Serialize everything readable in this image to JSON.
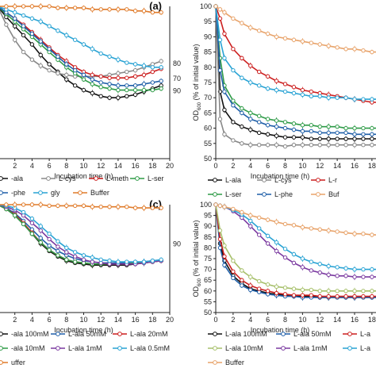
{
  "chart_data": [
    {
      "type": "line",
      "panel_label": "(a)",
      "xlabel": "Incubation time (h)",
      "ylabel": "",
      "xlim": [
        0,
        20
      ],
      "ylim": [
        50,
        100
      ],
      "xticks": [
        2,
        4,
        6,
        8,
        10,
        12,
        14,
        16,
        18,
        20
      ],
      "yticks": [],
      "x": [
        0,
        1,
        2,
        3,
        4,
        5,
        6,
        7,
        8,
        9,
        10,
        11,
        12,
        13,
        14,
        15,
        16,
        17,
        18,
        19
      ],
      "annotations": [
        "80",
        "70",
        "90"
      ],
      "series": [
        {
          "name": "L-ala",
          "color": "#111111",
          "marker": "circle",
          "values": [
            100,
            96.5,
            93.5,
            90.5,
            87.5,
            84,
            81,
            78.5,
            76,
            74,
            72.5,
            71.5,
            70.5,
            70,
            70,
            70.5,
            71,
            72,
            73,
            74
          ]
        },
        {
          "name": "L-cys",
          "color": "#888888",
          "marker": "circle",
          "values": [
            100,
            94,
            89,
            85,
            82.5,
            80.5,
            79,
            78,
            77.5,
            77,
            77,
            77,
            77,
            77.5,
            78,
            78.5,
            79,
            80,
            81,
            82
          ]
        },
        {
          "name": "L-meth",
          "color": "#cc1f1f",
          "marker": "circle",
          "values": [
            100,
            98,
            96,
            94,
            91.5,
            89,
            86.5,
            84,
            82,
            80,
            78.5,
            77.5,
            77,
            76.5,
            76.5,
            76.5,
            77,
            77.5,
            78.5,
            79.5
          ]
        },
        {
          "name": "L-ser",
          "color": "#2e9b47",
          "marker": "circle",
          "values": [
            100,
            97.5,
            95,
            92.5,
            90,
            87.5,
            85,
            82.5,
            80,
            78,
            76,
            74.5,
            73.5,
            73,
            72.5,
            72.5,
            72.5,
            72.5,
            72.5,
            73
          ]
        },
        {
          "name": "L-phe",
          "color": "#1f5fa8",
          "marker": "circle",
          "values": [
            100,
            98,
            96,
            93.5,
            91,
            88.5,
            86,
            83.5,
            81,
            79,
            77.5,
            76,
            75,
            74.5,
            74,
            74,
            74,
            74.5,
            75,
            75.5
          ]
        },
        {
          "name": "gly",
          "color": "#29a3d4",
          "marker": "circle",
          "values": [
            100,
            99,
            98,
            97,
            96,
            95,
            93.5,
            92,
            90.5,
            89,
            87.5,
            86,
            84.5,
            83.5,
            82.5,
            81.5,
            81,
            80.5,
            80,
            80
          ]
        },
        {
          "name": "Buffer",
          "color": "#e07b2a",
          "marker": "circle",
          "values": [
            100,
            100,
            100,
            100,
            100,
            100,
            100,
            99.5,
            99.5,
            99.5,
            99.5,
            99,
            99,
            99,
            99,
            99,
            98.5,
            98.5,
            98,
            98
          ]
        }
      ]
    },
    {
      "type": "line",
      "panel_label": "",
      "xlabel": "Incubation time (h)",
      "ylabel": "OD600 (% of initial value)",
      "xlim": [
        0,
        19.2
      ],
      "ylim": [
        50,
        100
      ],
      "xticks": [
        0,
        2,
        4,
        6,
        8,
        10,
        12,
        14,
        16,
        18
      ],
      "yticks": [
        50,
        55,
        60,
        65,
        70,
        75,
        80,
        85,
        90,
        95,
        100
      ],
      "x": [
        0,
        0.5,
        1,
        2,
        3,
        4,
        5,
        6,
        7,
        8,
        9,
        10,
        11,
        12,
        13,
        14,
        15,
        16,
        17,
        18,
        19
      ],
      "series": [
        {
          "name": "L-ala",
          "color": "#111111",
          "marker": "circle",
          "values": [
            100,
            72,
            66,
            62,
            60.5,
            59.5,
            58.5,
            58,
            57.5,
            57,
            57,
            57,
            56.5,
            56.5,
            56.5,
            56.5,
            56.5,
            56.5,
            56.5,
            56.5,
            56.5
          ]
        },
        {
          "name": "L-cys",
          "color": "#888888",
          "marker": "circle",
          "values": [
            100,
            63,
            58,
            56,
            55,
            54.5,
            54.5,
            54.5,
            54.5,
            54,
            54.5,
            54.5,
            54.5,
            54.5,
            54.5,
            54.5,
            54.5,
            54.5,
            54.5,
            54.5,
            54.5
          ]
        },
        {
          "name": "L-meth",
          "color": "#cc1f1f",
          "marker": "circle",
          "values": [
            100,
            96,
            91,
            86,
            83,
            80.5,
            78.5,
            77,
            75.5,
            74.5,
            73.5,
            72.5,
            72,
            71.5,
            71,
            70.5,
            70,
            69.5,
            69,
            68.5,
            68.5
          ]
        },
        {
          "name": "L-ser",
          "color": "#2e9b47",
          "marker": "circle",
          "values": [
            100,
            83,
            74,
            69,
            66.5,
            65,
            64,
            63,
            62.5,
            62,
            61.5,
            61,
            61,
            60.5,
            60.5,
            60.5,
            60,
            60,
            60,
            60,
            60
          ]
        },
        {
          "name": "L-phe",
          "color": "#1f5fa8",
          "marker": "circle",
          "values": [
            100,
            79,
            72,
            67.5,
            65,
            63,
            62,
            61,
            60.5,
            60,
            59.5,
            59,
            59,
            58.5,
            58.5,
            58.5,
            58.5,
            58,
            58,
            58,
            58
          ]
        },
        {
          "name": "gly",
          "color": "#29a3d4",
          "marker": "circle",
          "values": [
            100,
            89,
            83,
            79,
            76.5,
            75,
            74,
            73,
            72.5,
            72,
            71.5,
            71,
            70.5,
            70.5,
            70,
            70,
            70,
            69.5,
            69.5,
            69.5,
            69.5
          ]
        },
        {
          "name": "Buffer",
          "color": "#e8a36a",
          "marker": "circle",
          "values": [
            100,
            99,
            98,
            96,
            94.5,
            93,
            92,
            91,
            90,
            89.5,
            89,
            88.5,
            88,
            87.5,
            87,
            86.5,
            86,
            86,
            85.5,
            85,
            85
          ]
        }
      ]
    },
    {
      "type": "line",
      "panel_label": "(c)",
      "xlabel": "Incubation time (h)",
      "ylabel": "",
      "xlim": [
        0,
        20
      ],
      "ylim": [
        50,
        100
      ],
      "xticks": [
        2,
        4,
        6,
        8,
        10,
        12,
        14,
        16,
        18,
        20
      ],
      "yticks": [],
      "x": [
        0,
        1,
        2,
        3,
        4,
        5,
        6,
        7,
        8,
        9,
        10,
        11,
        12,
        13,
        14,
        15,
        16,
        17,
        18,
        19
      ],
      "annotations": [
        "90"
      ],
      "series": [
        {
          "name": "L-ala 100mM",
          "color": "#111111",
          "marker": "circle",
          "values": [
            100,
            98,
            95,
            91,
            86.5,
            82,
            78.5,
            76,
            74,
            73,
            72.5,
            72,
            72,
            72,
            72,
            72,
            72.5,
            73,
            73.5,
            74
          ]
        },
        {
          "name": "L-ala 50mM",
          "color": "#1f5fa8",
          "marker": "circle",
          "values": [
            100,
            98.5,
            96,
            92.5,
            88.5,
            84.5,
            81,
            78.5,
            76.5,
            75,
            74,
            73.5,
            73,
            73,
            73,
            73,
            73,
            73.5,
            74,
            74
          ]
        },
        {
          "name": "L-ala 20mM",
          "color": "#cc1f1f",
          "marker": "circle",
          "values": [
            100,
            98,
            95.5,
            91.5,
            87,
            82.5,
            79,
            76.5,
            74.5,
            73.5,
            73,
            72.5,
            72.5,
            72.5,
            72.5,
            72.5,
            73,
            73,
            73.5,
            74
          ]
        },
        {
          "name": "L-ala 10mM",
          "color": "#2e9b47",
          "marker": "circle",
          "values": [
            100,
            98,
            95,
            91,
            86.5,
            82.5,
            79,
            76.5,
            74.5,
            73.5,
            73,
            72.5,
            72.5,
            72.5,
            72.5,
            72.5,
            73,
            73,
            73.5,
            74
          ]
        },
        {
          "name": "L-ala 1mM",
          "color": "#7b3aa0",
          "marker": "circle",
          "values": [
            100,
            99,
            97.5,
            95,
            91.5,
            88,
            84,
            80.5,
            78,
            76,
            74.5,
            73.5,
            73,
            72.5,
            72.5,
            72.5,
            72.5,
            73,
            73.5,
            74
          ]
        },
        {
          "name": "L-ala 0.5mM",
          "color": "#29a3d4",
          "marker": "circle",
          "values": [
            100,
            99.5,
            98.5,
            96.5,
            93.5,
            90,
            86.5,
            83,
            80,
            78,
            76.5,
            75.5,
            74.5,
            74,
            73.5,
            73.5,
            73.5,
            73.5,
            74,
            74.5
          ]
        },
        {
          "name": "Buffer",
          "color": "#e07b2a",
          "marker": "circle",
          "values": [
            100,
            100,
            100,
            100,
            100,
            100,
            99.5,
            99.5,
            99.5,
            99.5,
            99.5,
            99,
            99,
            99,
            99,
            99,
            98.5,
            98.5,
            98.5,
            98.5
          ]
        }
      ]
    },
    {
      "type": "line",
      "panel_label": "",
      "xlabel": "Incubation time (h)",
      "ylabel": "OD600 (% of initial value)",
      "xlim": [
        0,
        19.2
      ],
      "ylim": [
        50,
        100
      ],
      "xticks": [
        0,
        2,
        4,
        6,
        8,
        10,
        12,
        14,
        16,
        18
      ],
      "yticks": [
        50,
        55,
        60,
        65,
        70,
        75,
        80,
        85,
        90,
        95,
        100
      ],
      "x": [
        0,
        0.5,
        1,
        2,
        3,
        4,
        5,
        6,
        7,
        8,
        9,
        10,
        11,
        12,
        13,
        14,
        15,
        16,
        17,
        18,
        19
      ],
      "series": [
        {
          "name": "L-ala 100mM",
          "color": "#111111",
          "marker": "circle",
          "values": [
            100,
            82,
            74,
            67,
            63.5,
            61,
            60,
            59,
            58.5,
            58,
            57.5,
            57.5,
            57.5,
            57,
            57,
            57,
            57,
            57,
            57,
            57,
            57
          ]
        },
        {
          "name": "L-ala 50mM",
          "color": "#1f5fa8",
          "marker": "circle",
          "values": [
            100,
            80,
            72,
            66,
            62.5,
            60.5,
            59.5,
            58.5,
            58,
            57.5,
            57.5,
            57,
            57,
            57,
            57,
            57,
            57,
            57,
            57,
            57,
            57
          ]
        },
        {
          "name": "L-ala 20mM",
          "color": "#cc1f1f",
          "marker": "circle",
          "values": [
            100,
            84,
            76,
            69,
            65,
            62.5,
            61,
            60,
            59,
            58.5,
            58,
            58,
            58,
            57.5,
            57.5,
            57.5,
            57.5,
            57.5,
            57.5,
            57.5,
            57.5
          ]
        },
        {
          "name": "L-ala 10mM",
          "color": "#a7c06b",
          "marker": "circle",
          "values": [
            100,
            88,
            81,
            74,
            69.5,
            66.5,
            64.5,
            63,
            62,
            61.5,
            61,
            60.5,
            60.5,
            60,
            60,
            60,
            60,
            60,
            60,
            60,
            60
          ]
        },
        {
          "name": "L-ala 1mM",
          "color": "#7b3aa0",
          "marker": "circle",
          "values": [
            100,
            99.5,
            99,
            97,
            94,
            90,
            86,
            82,
            78.5,
            75.5,
            73,
            71,
            69.5,
            68.5,
            67.5,
            67,
            67,
            66.5,
            66.5,
            66.5,
            66.5
          ]
        },
        {
          "name": "L-ala 0.5mM",
          "color": "#29a3d4",
          "marker": "circle",
          "values": [
            100,
            99.5,
            99,
            97.5,
            95.5,
            92.5,
            89,
            85.5,
            82.5,
            79.5,
            77,
            75,
            73.5,
            72.5,
            71.5,
            71,
            70.5,
            70,
            70,
            70,
            70
          ]
        },
        {
          "name": "Buffer",
          "color": "#e8a36a",
          "marker": "circle",
          "values": [
            100,
            99.5,
            99,
            98,
            96.5,
            95,
            94,
            93,
            92,
            91,
            90.5,
            89.5,
            89,
            88.5,
            88,
            87.5,
            87,
            86.5,
            86.5,
            86,
            86
          ]
        }
      ]
    }
  ],
  "legends": {
    "a_left": [
      {
        "label": "-ala",
        "color": "#111111"
      },
      {
        "label": "L-cys",
        "color": "#888888"
      },
      {
        "label": "L-meth",
        "color": "#cc1f1f"
      },
      {
        "label": "L-ser",
        "color": "#2e9b47"
      },
      {
        "label": "-phe",
        "color": "#1f5fa8"
      },
      {
        "label": "gly",
        "color": "#29a3d4"
      },
      {
        "label": "Buffer",
        "color": "#e07b2a"
      }
    ],
    "a_right": [
      {
        "label": "L-ala",
        "color": "#111111"
      },
      {
        "label": "L-cys",
        "color": "#888888"
      },
      {
        "label": "L-r",
        "color": "#cc1f1f"
      },
      {
        "label": "L-ser",
        "color": "#2e9b47"
      },
      {
        "label": "L-phe",
        "color": "#1f5fa8"
      },
      {
        "label": "Buf",
        "color": "#e8a36a"
      }
    ],
    "c_left": [
      {
        "label": "-ala 100mM",
        "color": "#111111"
      },
      {
        "label": "L-ala 50mM",
        "color": "#1f5fa8"
      },
      {
        "label": "L-ala 20mM",
        "color": "#cc1f1f"
      },
      {
        "label": "-ala 10mM",
        "color": "#2e9b47"
      },
      {
        "label": "L-ala 1mM",
        "color": "#7b3aa0"
      },
      {
        "label": "L-ala 0.5mM",
        "color": "#29a3d4"
      },
      {
        "label": "uffer",
        "color": "#e07b2a"
      }
    ],
    "c_right": [
      {
        "label": "L-ala 100mM",
        "color": "#111111"
      },
      {
        "label": "L-ala 50mM",
        "color": "#1f5fa8"
      },
      {
        "label": "L-a",
        "color": "#cc1f1f"
      },
      {
        "label": "L-ala 10mM",
        "color": "#a7c06b"
      },
      {
        "label": "L-ala 1mM",
        "color": "#7b3aa0"
      },
      {
        "label": "L-a",
        "color": "#29a3d4"
      },
      {
        "label": "Buffer",
        "color": "#e8a36a"
      }
    ]
  }
}
